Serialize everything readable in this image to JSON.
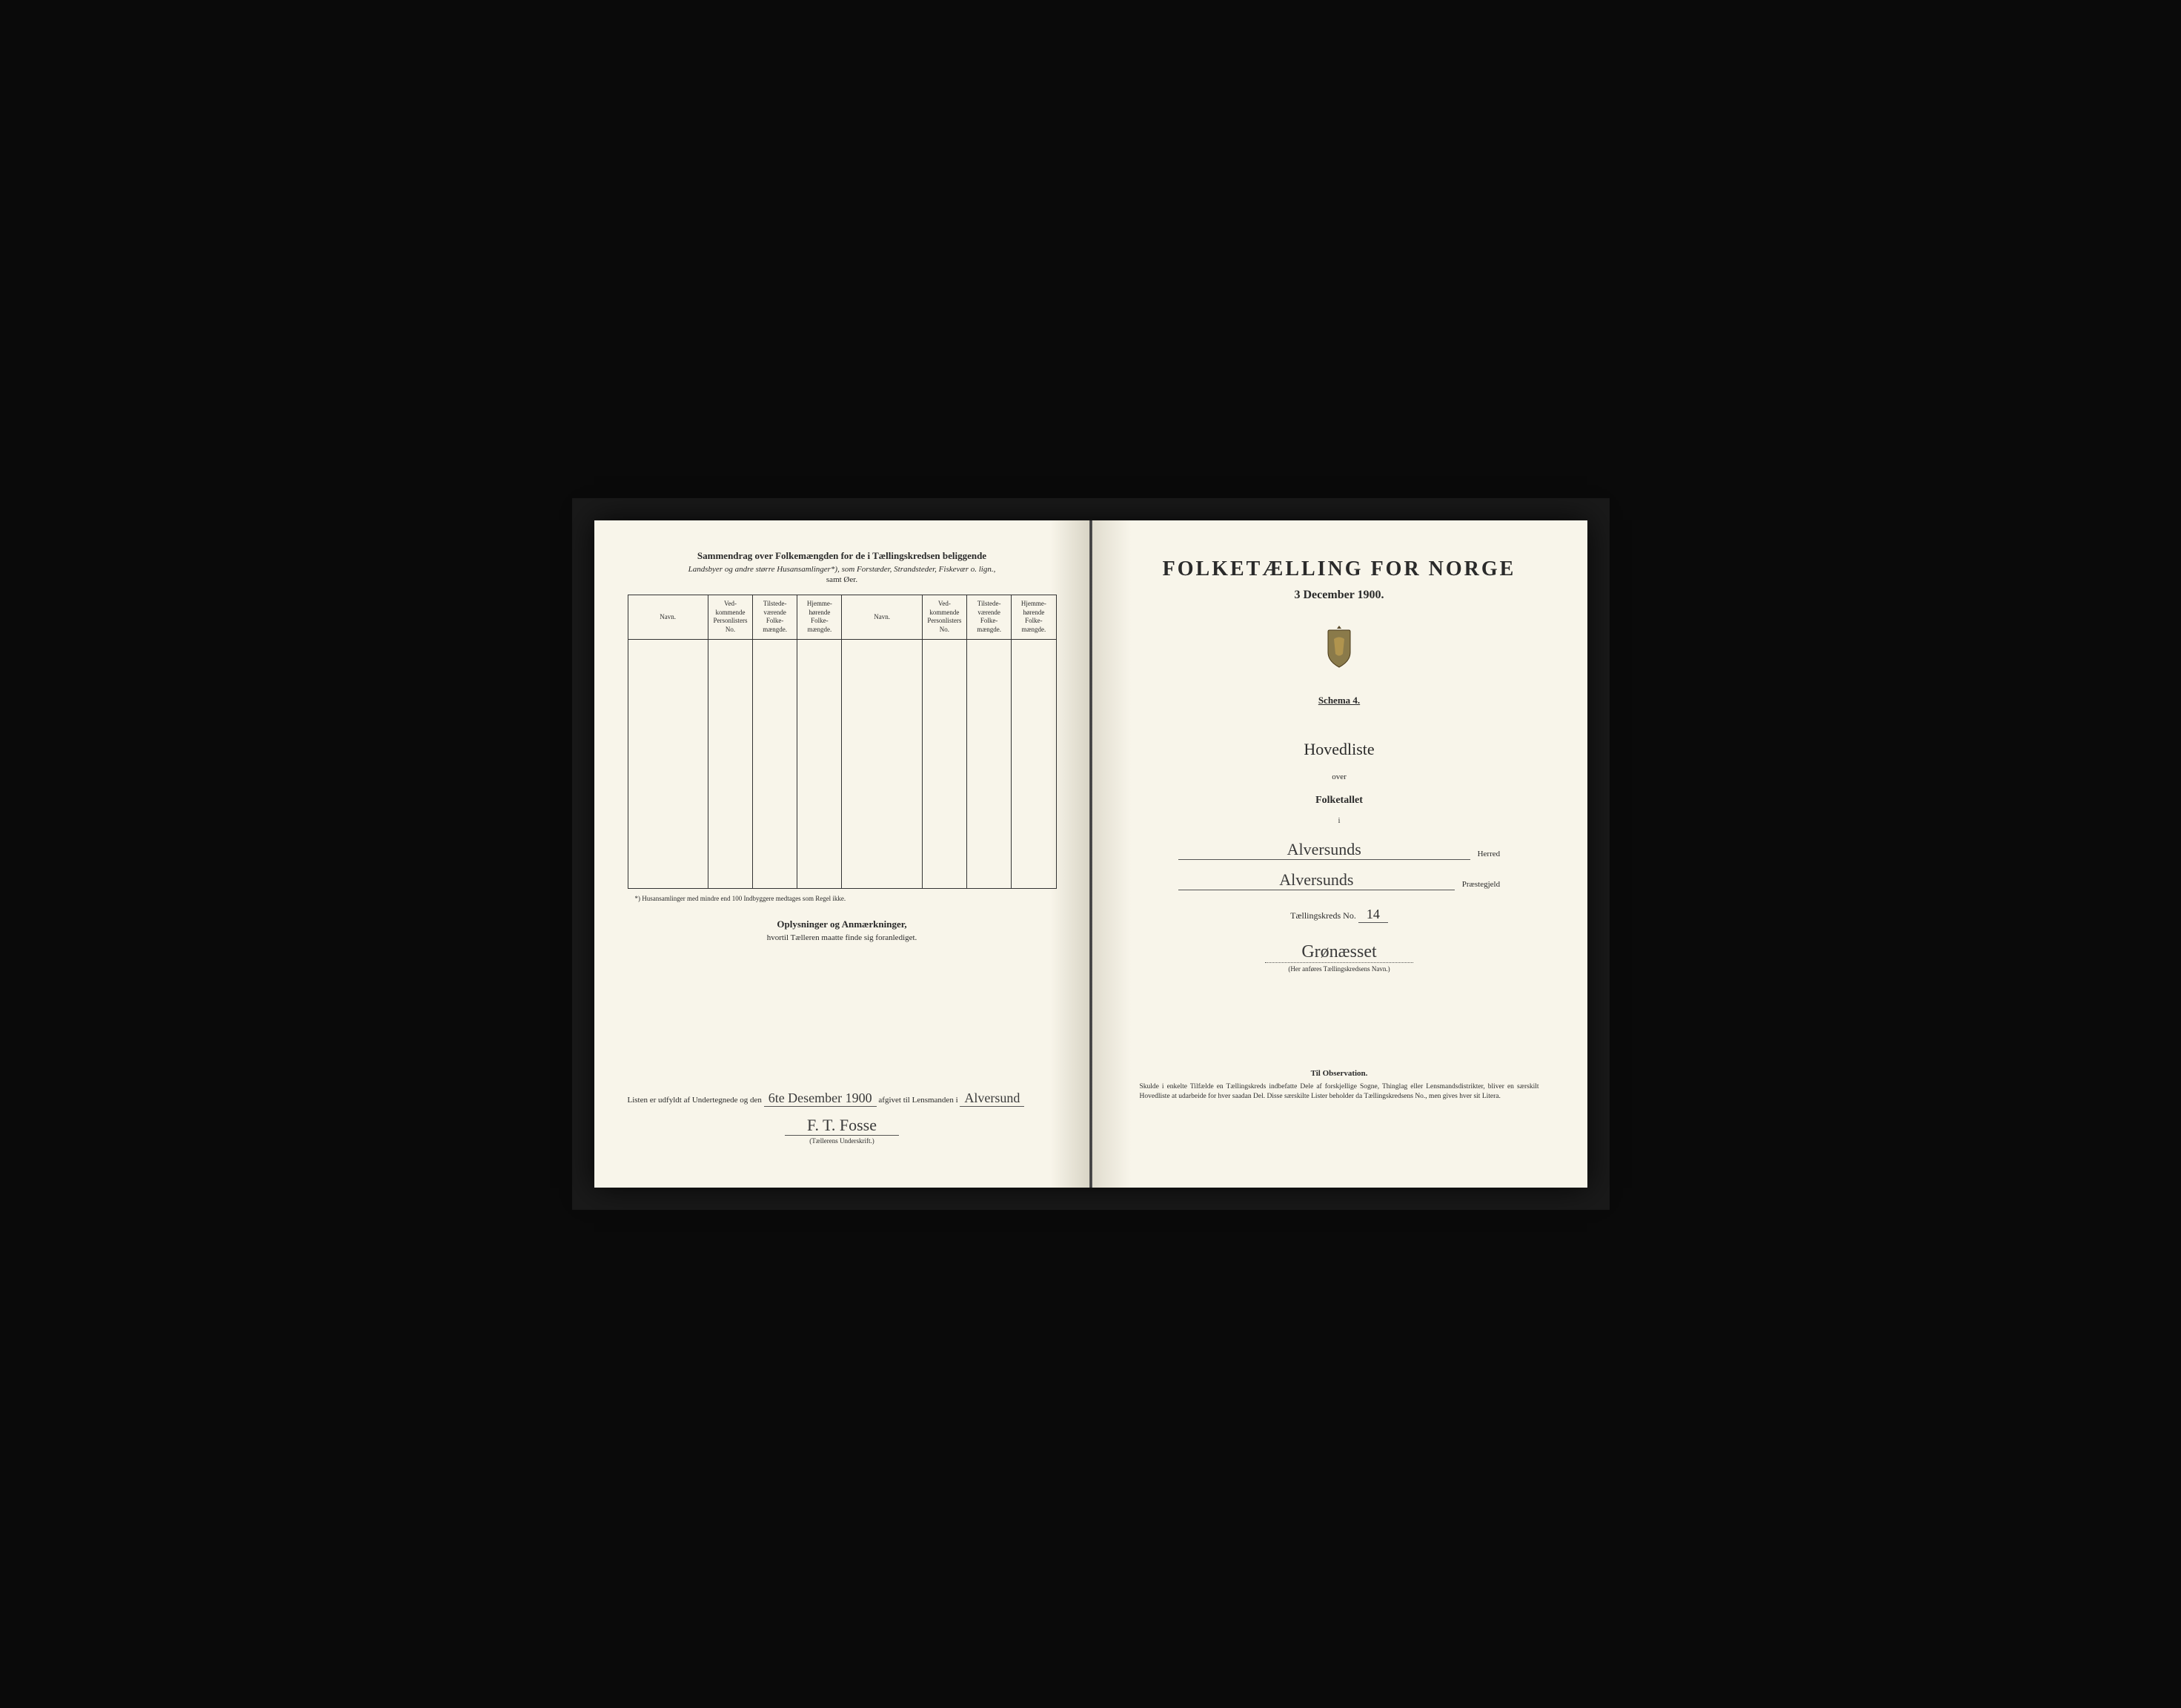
{
  "colors": {
    "paper": "#f8f5ea",
    "ink": "#2a2a2a",
    "handwriting": "#3a3a3a",
    "border": "#333333",
    "frame": "#0a0a0a"
  },
  "leftPage": {
    "title": "Sammendrag over Folkemængden for de i Tællingskredsen beliggende",
    "subtitle": "Landsbyer og andre større Husansamlinger*), som Forstæder, Strandsteder, Fiskevær o. lign.,",
    "subtitle2": "samt Øer.",
    "tableHeaders": {
      "navn": "Navn.",
      "vedkommende": "Ved-\nkommende\nPersonlisters\nNo.",
      "tilstede": "Tilstede-\nværende\nFolke-\nmængde.",
      "hjemme": "Hjemme-\nhørende\nFolke-\nmængde."
    },
    "tableRows": 12,
    "footnote": "*) Husansamlinger med mindre end 100 Indbyggere medtages som Regel ikke.",
    "oplysningerTitle": "Oplysninger og Anmærkninger,",
    "oplysningerSub": "hvortil Tælleren maatte finde sig foranlediget.",
    "bottomLine": {
      "prefix": "Listen er udfyldt af Undertegnede og den",
      "date": "6te Desember 1900",
      "middle": "afgivet til Lensmanden i",
      "place": "Alversund"
    },
    "signature": "F. T. Fosse",
    "signatureLabel": "(Tællerens Underskrift.)"
  },
  "rightPage": {
    "mainTitle": "FOLKETÆLLING FOR NORGE",
    "date": "3 December 1900.",
    "schema": "Schema 4.",
    "hovedliste": "Hovedliste",
    "over": "over",
    "folketallet": "Folketallet",
    "i": "i",
    "herred": {
      "value": "Alversunds",
      "label": "Herred"
    },
    "praestegjeld": {
      "value": "Alversunds",
      "label": "Præstegjeld"
    },
    "kreds": {
      "prefix": "Tællingskreds No.",
      "number": "14",
      "name": "Grønæsset",
      "hint": "(Her anføres Tællingskredsens Navn.)"
    },
    "observation": {
      "title": "Til Observation.",
      "text": "Skulde i enkelte Tilfælde en Tællingskreds indbefatte Dele af forskjellige Sogne, Thinglag eller Lensmandsdistrikter, bliver en særskilt Hovedliste at udarbeide for hver saadan Del. Disse særskilte Lister beholder da Tællingskredsens No., men gives hver sit Litera."
    }
  }
}
